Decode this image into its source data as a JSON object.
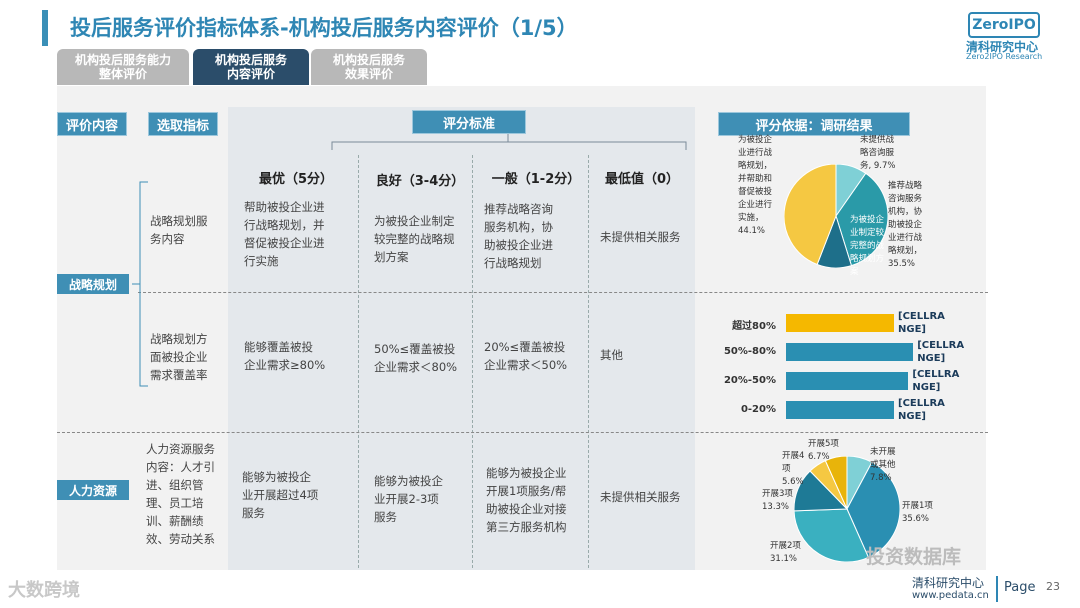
{
  "header": {
    "title": "投后服务评价指标体系-机构投后服务内容评价（1/5）",
    "logo_mark": "ZeroIPO",
    "logo_cn": "清科研究中心",
    "logo_en": "Zero2IPO Research"
  },
  "tabs": [
    {
      "label": "机构投后服务能力\n整体评价",
      "active": false
    },
    {
      "label": "机构投后服务\n内容评价",
      "active": true
    },
    {
      "label": "机构投后服务\n效果评价",
      "active": false
    }
  ],
  "table": {
    "col_content": "评价内容",
    "col_indicator": "选取指标",
    "col_scoring": "评分标准",
    "col_basis": "评分依据：调研结果",
    "levels": [
      "最优（5分）",
      "良好（3-4分）",
      "一般（1-2分）",
      "最低值（0）"
    ],
    "categories": [
      "战略规划",
      "人力资源"
    ],
    "rows": [
      {
        "indicator": "战略规划服\n务内容",
        "cells": [
          "帮助被投企业进\n行战略规划，并\n督促被投企业进\n行实施",
          "为被投企业制定\n较完整的战略规\n划方案",
          "推荐战略咨询\n服务机构，协\n助被投企业进\n行战略规划",
          "未提供相关服务"
        ]
      },
      {
        "indicator": "战略规划方\n面被投企业\n需求覆盖率",
        "cells": [
          "能够覆盖被投\n企业需求≥80%",
          "50%≤覆盖被投\n企业需求＜80%",
          "20%≤覆盖被投\n企业需求＜50%",
          "其他"
        ]
      },
      {
        "indicator": "人力资源服务\n内容：人才引\n进、组织管\n理、员工培\n训、薪酬绩\n效、劳动关系",
        "cells": [
          "能够为被投企\n业开展超过4项\n服务",
          "能够为被投企\n业开展2-3项\n服务",
          "能够为被投企业\n开展1项服务/帮\n助被投企业对接\n第三方服务机构",
          "未提供相关服务"
        ]
      }
    ]
  },
  "chart_data": [
    {
      "type": "pie",
      "slices": [
        {
          "label": "为被投企业进行战略规划，并帮助和督促被投企业进行实施",
          "value": 44.1,
          "color": "#f5c842"
        },
        {
          "label": "未提供战略咨询服务",
          "value": 9.7,
          "color": "#7fd0d6"
        },
        {
          "label": "推荐战略咨询服务机构，协助被投企业进行战略规划",
          "value": 35.5,
          "color": "#2a9aa8"
        },
        {
          "label": "为被投企业制定较完整的战略规划方案",
          "value": 10.7,
          "color": "#1e6f8a"
        }
      ],
      "label_texts": [
        {
          "text": "为被投企\n业进行战\n略规划，\n并帮助和\n督促被投\n企业进行\n实施，\n44.1%"
        },
        {
          "text": "未提供战\n略咨询服\n务, 9.7%"
        },
        {
          "text": "推荐战略\n咨询服务\n机构，协\n助被投企\n业进行战\n略规划，\n35.5%"
        },
        {
          "text": "为被投企\n业制定较\n完整的战\n略规划方\n案"
        }
      ]
    },
    {
      "type": "bar",
      "orientation": "horizontal",
      "categories": [
        "超过80%",
        "50%-80%",
        "20%-50%",
        "0-20%"
      ],
      "values": [
        0.45,
        0.53,
        0.51,
        0.45
      ],
      "value_labels": [
        "[CELLRA\nNGE]",
        "[CELLRA\nNGE]",
        "[CELLRA\nNGE]",
        "[CELLRA\nNGE]"
      ],
      "colors": [
        "#f5b800",
        "#2a8fb2",
        "#2a8fb2",
        "#2a8fb2"
      ]
    },
    {
      "type": "pie",
      "slices": [
        {
          "label": "未开展或其他",
          "value": 7.8,
          "color": "#7fd0d6"
        },
        {
          "label": "开展1项",
          "value": 35.6,
          "color": "#2a8fb2"
        },
        {
          "label": "开展2项",
          "value": 31.1,
          "color": "#3ab0c0"
        },
        {
          "label": "开展3项",
          "value": 13.3,
          "color": "#1e7a96"
        },
        {
          "label": "开展4项",
          "value": 5.6,
          "color": "#f5c842"
        },
        {
          "label": "开展5项",
          "value": 6.7,
          "color": "#e8b40a"
        }
      ],
      "label_texts": [
        {
          "text": "未开展\n或其他\n7.8%"
        },
        {
          "text": "开展1项\n35.6%"
        },
        {
          "text": "开展2项\n31.1%"
        },
        {
          "text": "开展3项\n13.3%"
        },
        {
          "text": "开展4项\n5.6%"
        },
        {
          "text": "开展5项\n6.7%"
        }
      ]
    }
  ],
  "footer": {
    "org": "清科研究中心",
    "url": "www.pedata.cn",
    "page_label": "Page",
    "page_number": "23",
    "watermark_left": "大数跨境",
    "watermark_right": "投资数据库"
  }
}
